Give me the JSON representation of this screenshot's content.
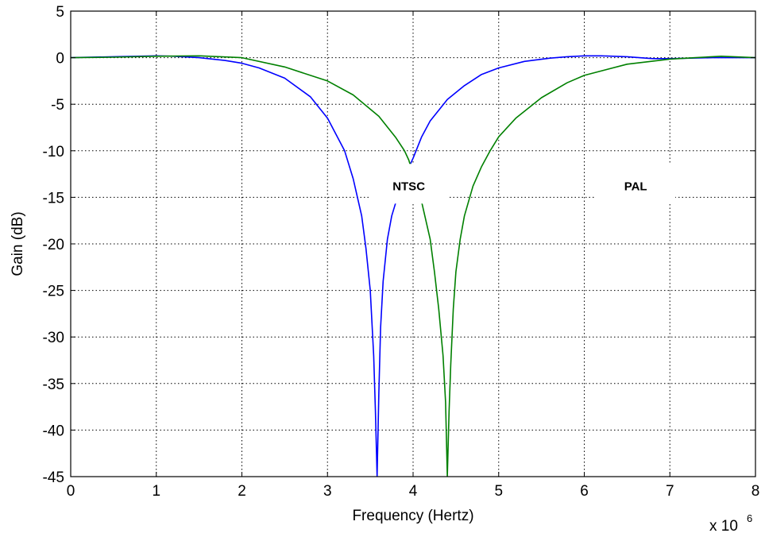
{
  "chart_data": {
    "type": "line",
    "xlabel": "Frequency (Hertz)",
    "ylabel": "Gain (dB)",
    "x_multiplier_label": "x 10",
    "x_multiplier_exponent": "6",
    "xlim": [
      0,
      8
    ],
    "ylim": [
      -45,
      5
    ],
    "xticks": [
      0,
      1,
      2,
      3,
      4,
      5,
      6,
      7,
      8
    ],
    "yticks": [
      5,
      0,
      -5,
      -10,
      -15,
      -20,
      -25,
      -30,
      -35,
      -40,
      -45
    ],
    "grid": true,
    "grid_style": "dotted",
    "annotations": [
      {
        "text": "NTSC",
        "x": 3.95,
        "y": -13.8
      },
      {
        "text": "PAL",
        "x": 6.6,
        "y": -13.8
      }
    ],
    "series": [
      {
        "color": "#0000ff",
        "x": [
          0,
          0.5,
          1.0,
          1.2,
          1.5,
          1.8,
          2.0,
          2.2,
          2.5,
          2.8,
          3.0,
          3.2,
          3.3,
          3.4,
          3.45,
          3.5,
          3.54,
          3.56,
          3.58,
          3.6,
          3.62,
          3.65,
          3.7,
          3.75,
          3.8,
          3.85,
          3.9,
          3.95,
          4.0,
          4.1,
          4.2,
          4.4,
          4.6,
          4.8,
          5.0,
          5.3,
          5.6,
          5.8,
          6.0,
          6.2,
          6.5,
          6.8,
          7.0,
          7.5,
          8.0
        ],
        "y": [
          0,
          0.1,
          0.2,
          0.15,
          0,
          -0.3,
          -0.6,
          -1.1,
          -2.2,
          -4.2,
          -6.5,
          -10,
          -13,
          -17,
          -20.5,
          -25,
          -32,
          -38,
          -45,
          -36,
          -29,
          -24,
          -19.5,
          -17,
          -15.5,
          -14,
          -12.8,
          -11.8,
          -10.8,
          -8.5,
          -6.8,
          -4.5,
          -3,
          -1.8,
          -1.1,
          -0.4,
          -0.05,
          0.1,
          0.2,
          0.2,
          0.1,
          -0.1,
          -0.1,
          0,
          0
        ]
      },
      {
        "color": "#008000",
        "x": [
          0,
          0.5,
          1.0,
          1.5,
          2.0,
          2.5,
          3.0,
          3.3,
          3.6,
          3.8,
          3.9,
          3.95,
          4.0,
          4.1,
          4.2,
          4.25,
          4.3,
          4.35,
          4.38,
          4.4,
          4.42,
          4.44,
          4.47,
          4.5,
          4.55,
          4.6,
          4.7,
          4.8,
          4.9,
          5.0,
          5.2,
          5.5,
          5.8,
          6.0,
          6.5,
          7.0,
          7.3,
          7.6,
          8.0
        ],
        "y": [
          0,
          0.05,
          0.15,
          0.2,
          0,
          -1,
          -2.5,
          -4,
          -6.3,
          -8.6,
          -10,
          -11,
          -12.5,
          -15.5,
          -19.5,
          -23,
          -27,
          -32,
          -37,
          -45,
          -38,
          -33,
          -27,
          -23,
          -19.5,
          -17,
          -13.8,
          -11.7,
          -10,
          -8.5,
          -6.5,
          -4.3,
          -2.7,
          -1.9,
          -0.7,
          -0.15,
          0,
          0.15,
          0
        ]
      }
    ]
  }
}
